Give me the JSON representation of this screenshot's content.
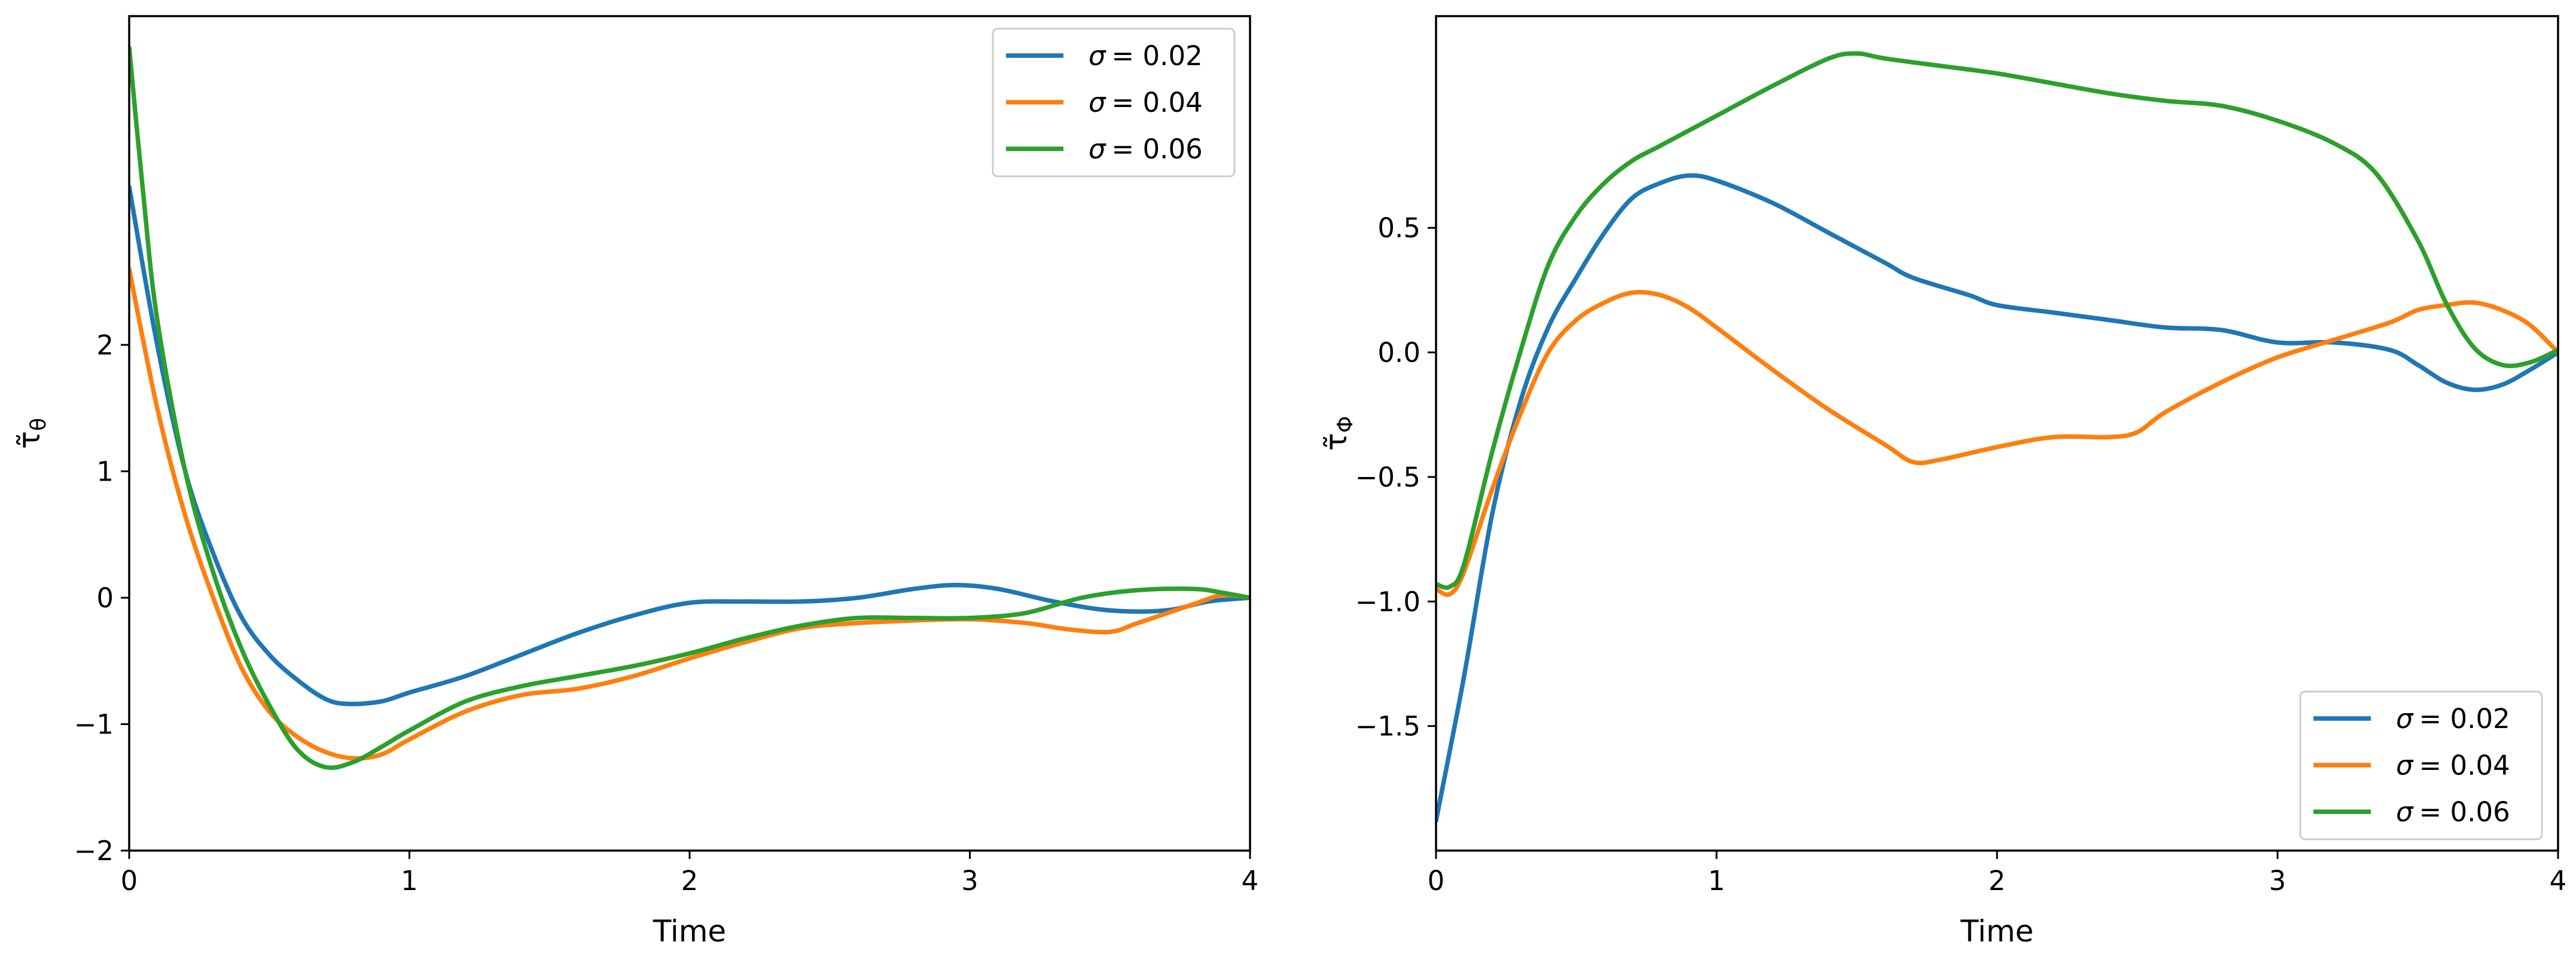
{
  "chart_data": [
    {
      "type": "line",
      "xlabel": "Time",
      "ylabel": "τ̃θ",
      "ylabel_main": "τ̃",
      "ylabel_sub": "θ",
      "xlim": [
        0,
        4
      ],
      "ylim": [
        -2,
        4.6
      ],
      "xticks": [
        0,
        1,
        2,
        3,
        4
      ],
      "xtick_labels": [
        "0",
        "1",
        "2",
        "3",
        "4"
      ],
      "yticks": [
        -2,
        -1,
        0,
        1,
        2
      ],
      "ytick_labels": [
        "−2",
        "−1",
        "0",
        "1",
        "2"
      ],
      "legend_position": "upper right",
      "series": [
        {
          "name": "σ = 0.02",
          "label_symbol": "σ",
          "label_value": "= 0.02",
          "color": "#1f77b4",
          "points": [
            [
              0,
              3.25
            ],
            [
              0.1,
              2.0
            ],
            [
              0.2,
              1.0
            ],
            [
              0.3,
              0.35
            ],
            [
              0.4,
              -0.15
            ],
            [
              0.5,
              -0.45
            ],
            [
              0.6,
              -0.65
            ],
            [
              0.7,
              -0.8
            ],
            [
              0.78,
              -0.84
            ],
            [
              0.9,
              -0.82
            ],
            [
              1.0,
              -0.75
            ],
            [
              1.2,
              -0.62
            ],
            [
              1.4,
              -0.45
            ],
            [
              1.6,
              -0.28
            ],
            [
              1.8,
              -0.14
            ],
            [
              2.0,
              -0.04
            ],
            [
              2.2,
              -0.03
            ],
            [
              2.4,
              -0.03
            ],
            [
              2.6,
              0.0
            ],
            [
              2.8,
              0.07
            ],
            [
              2.95,
              0.1
            ],
            [
              3.1,
              0.07
            ],
            [
              3.3,
              -0.03
            ],
            [
              3.5,
              -0.1
            ],
            [
              3.7,
              -0.1
            ],
            [
              3.85,
              -0.03
            ],
            [
              4.0,
              0.0
            ]
          ]
        },
        {
          "name": "σ = 0.04",
          "label_symbol": "σ",
          "label_value": "= 0.04",
          "color": "#ff7f0e",
          "points": [
            [
              0,
              2.6
            ],
            [
              0.1,
              1.5
            ],
            [
              0.2,
              0.65
            ],
            [
              0.3,
              0.0
            ],
            [
              0.4,
              -0.55
            ],
            [
              0.5,
              -0.9
            ],
            [
              0.6,
              -1.1
            ],
            [
              0.7,
              -1.22
            ],
            [
              0.8,
              -1.27
            ],
            [
              0.9,
              -1.24
            ],
            [
              1.0,
              -1.12
            ],
            [
              1.2,
              -0.9
            ],
            [
              1.4,
              -0.77
            ],
            [
              1.6,
              -0.72
            ],
            [
              1.8,
              -0.62
            ],
            [
              2.0,
              -0.48
            ],
            [
              2.2,
              -0.35
            ],
            [
              2.4,
              -0.24
            ],
            [
              2.6,
              -0.2
            ],
            [
              2.8,
              -0.18
            ],
            [
              3.0,
              -0.17
            ],
            [
              3.2,
              -0.2
            ],
            [
              3.35,
              -0.25
            ],
            [
              3.5,
              -0.27
            ],
            [
              3.6,
              -0.2
            ],
            [
              3.8,
              -0.05
            ],
            [
              3.9,
              0.02
            ],
            [
              4.0,
              0.0
            ]
          ]
        },
        {
          "name": "σ = 0.06",
          "label_symbol": "σ",
          "label_value": "= 0.06",
          "color": "#2ca02c",
          "points": [
            [
              0,
              4.35
            ],
            [
              0.05,
              3.2
            ],
            [
              0.1,
              2.2
            ],
            [
              0.2,
              1.0
            ],
            [
              0.3,
              0.2
            ],
            [
              0.4,
              -0.4
            ],
            [
              0.5,
              -0.85
            ],
            [
              0.6,
              -1.2
            ],
            [
              0.7,
              -1.34
            ],
            [
              0.8,
              -1.3
            ],
            [
              0.9,
              -1.18
            ],
            [
              1.0,
              -1.05
            ],
            [
              1.2,
              -0.82
            ],
            [
              1.4,
              -0.7
            ],
            [
              1.6,
              -0.62
            ],
            [
              1.8,
              -0.54
            ],
            [
              2.0,
              -0.44
            ],
            [
              2.2,
              -0.32
            ],
            [
              2.4,
              -0.22
            ],
            [
              2.6,
              -0.16
            ],
            [
              2.8,
              -0.16
            ],
            [
              3.0,
              -0.16
            ],
            [
              3.2,
              -0.12
            ],
            [
              3.4,
              0.0
            ],
            [
              3.6,
              0.06
            ],
            [
              3.8,
              0.07
            ],
            [
              3.9,
              0.04
            ],
            [
              4.0,
              0.0
            ]
          ]
        }
      ]
    },
    {
      "type": "line",
      "xlabel": "Time",
      "ylabel": "τ̃Φ",
      "ylabel_main": "τ̃",
      "ylabel_sub": "Φ",
      "xlim": [
        0,
        4
      ],
      "ylim": [
        -2.0,
        1.35
      ],
      "xticks": [
        0,
        1,
        2,
        3,
        4
      ],
      "xtick_labels": [
        "0",
        "1",
        "2",
        "3",
        "4"
      ],
      "yticks": [
        -1.5,
        -1.0,
        -0.5,
        0.0,
        0.5
      ],
      "ytick_labels": [
        "−1.5",
        "−1.0",
        "−0.5",
        "0.0",
        "0.5"
      ],
      "legend_position": "lower right",
      "series": [
        {
          "name": "σ = 0.02",
          "label_symbol": "σ",
          "label_value": "= 0.02",
          "color": "#1f77b4",
          "points": [
            [
              0,
              -1.88
            ],
            [
              0.1,
              -1.3
            ],
            [
              0.2,
              -0.65
            ],
            [
              0.3,
              -0.2
            ],
            [
              0.4,
              0.1
            ],
            [
              0.5,
              0.3
            ],
            [
              0.6,
              0.48
            ],
            [
              0.7,
              0.62
            ],
            [
              0.8,
              0.68
            ],
            [
              0.9,
              0.71
            ],
            [
              1.0,
              0.69
            ],
            [
              1.2,
              0.6
            ],
            [
              1.4,
              0.48
            ],
            [
              1.6,
              0.36
            ],
            [
              1.7,
              0.3
            ],
            [
              1.9,
              0.23
            ],
            [
              2.0,
              0.19
            ],
            [
              2.2,
              0.16
            ],
            [
              2.4,
              0.13
            ],
            [
              2.6,
              0.1
            ],
            [
              2.8,
              0.09
            ],
            [
              3.0,
              0.04
            ],
            [
              3.2,
              0.04
            ],
            [
              3.4,
              0.01
            ],
            [
              3.5,
              -0.05
            ],
            [
              3.6,
              -0.12
            ],
            [
              3.7,
              -0.15
            ],
            [
              3.8,
              -0.13
            ],
            [
              3.9,
              -0.07
            ],
            [
              4.0,
              0.0
            ]
          ]
        },
        {
          "name": "σ = 0.04",
          "label_symbol": "σ",
          "label_value": "= 0.04",
          "color": "#ff7f0e",
          "points": [
            [
              0,
              -0.95
            ],
            [
              0.05,
              -0.97
            ],
            [
              0.1,
              -0.88
            ],
            [
              0.2,
              -0.55
            ],
            [
              0.3,
              -0.25
            ],
            [
              0.4,
              0.0
            ],
            [
              0.5,
              0.13
            ],
            [
              0.6,
              0.2
            ],
            [
              0.7,
              0.24
            ],
            [
              0.8,
              0.23
            ],
            [
              0.9,
              0.18
            ],
            [
              1.0,
              0.1
            ],
            [
              1.2,
              -0.07
            ],
            [
              1.4,
              -0.23
            ],
            [
              1.6,
              -0.37
            ],
            [
              1.7,
              -0.44
            ],
            [
              1.8,
              -0.43
            ],
            [
              2.0,
              -0.38
            ],
            [
              2.2,
              -0.34
            ],
            [
              2.4,
              -0.34
            ],
            [
              2.5,
              -0.32
            ],
            [
              2.6,
              -0.24
            ],
            [
              2.8,
              -0.12
            ],
            [
              3.0,
              -0.02
            ],
            [
              3.2,
              0.05
            ],
            [
              3.4,
              0.12
            ],
            [
              3.5,
              0.17
            ],
            [
              3.6,
              0.19
            ],
            [
              3.7,
              0.2
            ],
            [
              3.8,
              0.17
            ],
            [
              3.9,
              0.11
            ],
            [
              4.0,
              0.0
            ]
          ]
        },
        {
          "name": "σ = 0.06",
          "label_symbol": "σ",
          "label_value": "= 0.06",
          "color": "#2ca02c",
          "points": [
            [
              0,
              -0.93
            ],
            [
              0.05,
              -0.94
            ],
            [
              0.1,
              -0.85
            ],
            [
              0.2,
              -0.4
            ],
            [
              0.3,
              0.0
            ],
            [
              0.4,
              0.35
            ],
            [
              0.5,
              0.55
            ],
            [
              0.6,
              0.68
            ],
            [
              0.7,
              0.77
            ],
            [
              0.8,
              0.83
            ],
            [
              1.0,
              0.95
            ],
            [
              1.2,
              1.07
            ],
            [
              1.4,
              1.18
            ],
            [
              1.5,
              1.2
            ],
            [
              1.6,
              1.18
            ],
            [
              1.8,
              1.15
            ],
            [
              2.0,
              1.12
            ],
            [
              2.2,
              1.08
            ],
            [
              2.4,
              1.04
            ],
            [
              2.6,
              1.01
            ],
            [
              2.8,
              0.99
            ],
            [
              3.0,
              0.93
            ],
            [
              3.2,
              0.84
            ],
            [
              3.35,
              0.72
            ],
            [
              3.5,
              0.45
            ],
            [
              3.6,
              0.2
            ],
            [
              3.7,
              0.02
            ],
            [
              3.8,
              -0.05
            ],
            [
              3.9,
              -0.04
            ],
            [
              4.0,
              0.01
            ]
          ]
        }
      ]
    }
  ]
}
